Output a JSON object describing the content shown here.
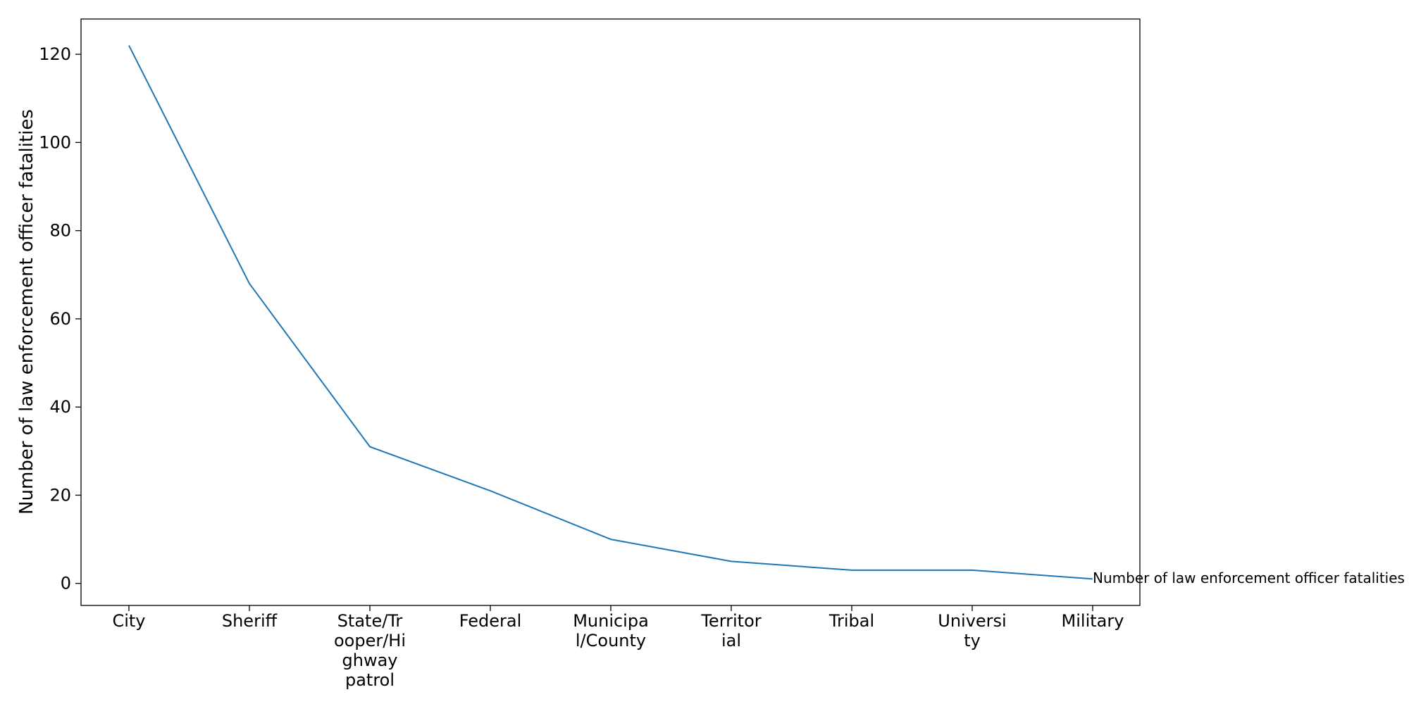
{
  "chart_data": {
    "type": "line",
    "title": "",
    "xlabel": "",
    "ylabel": "Number of law enforcement officer fatalities",
    "categories": [
      "City",
      "Sheriff",
      "State/Trooper/Highway patrol",
      "Federal",
      "Municipal/County",
      "Territorial",
      "Tribal",
      "University",
      "Military"
    ],
    "category_label_lines": [
      [
        "City"
      ],
      [
        "Sheriff"
      ],
      [
        "State/Tr",
        "ooper/Hi",
        "ghway",
        "patrol"
      ],
      [
        "Federal"
      ],
      [
        "Municipa",
        "l/County"
      ],
      [
        "Territor",
        "ial"
      ],
      [
        "Tribal"
      ],
      [
        "Universi",
        "ty"
      ],
      [
        "Military"
      ]
    ],
    "series": [
      {
        "values": [
          122,
          68,
          31,
          21,
          10,
          5,
          3,
          3,
          1
        ],
        "color": "#1f77b4"
      }
    ],
    "end_annotation": "Number of law enforcement officer fatalities",
    "ylim": [
      -5,
      128
    ],
    "yticks": [
      0,
      20,
      40,
      60,
      80,
      100,
      120
    ],
    "grid": false,
    "legend": "none"
  }
}
